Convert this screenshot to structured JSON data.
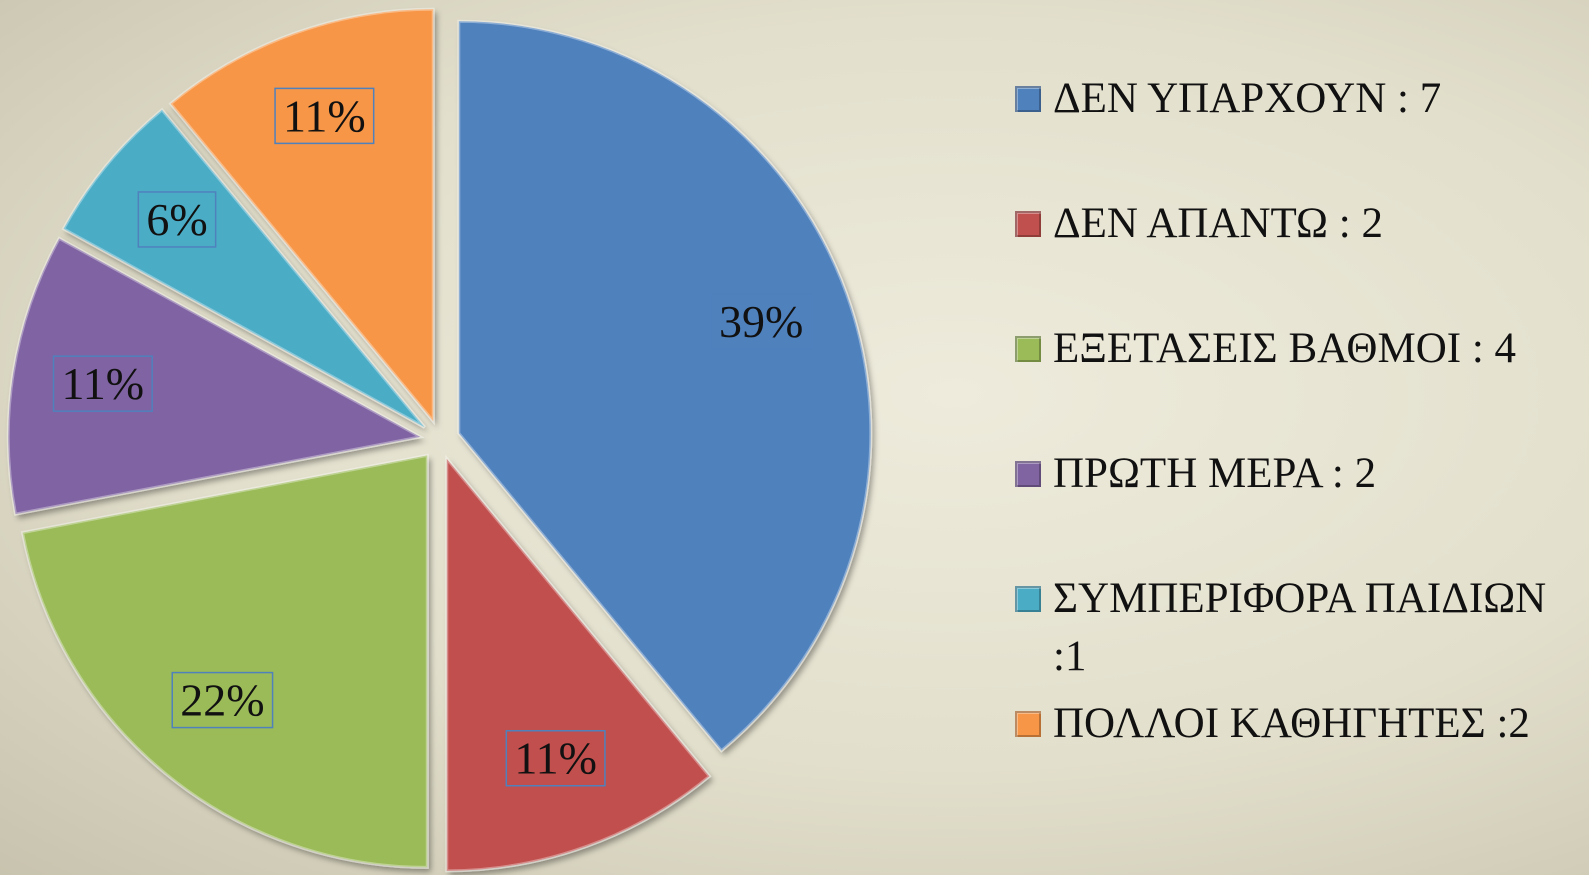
{
  "chart_data": {
    "type": "pie",
    "categories": [
      "ΔΕΝ ΥΠΑΡΧΟΥΝ : 7",
      "ΔΕΝ ΑΠΑΝΤΩ : 2",
      "ΕΞΕΤΑΣΕΙΣ ΒΑΘΜΟΙ : 4",
      "ΠΡΩΤΗ ΜΕΡΑ : 2",
      "ΣΥΜΠΕΡΙΦΟΡΑ ΠΑΙΔΙΩΝ :1",
      "ΠΟΛΛΟΙ ΚΑΘΗΓΗΤΕΣ :2"
    ],
    "values": [
      39,
      11,
      22,
      11,
      6,
      11
    ],
    "value_labels": [
      "39%",
      "11%",
      "22%",
      "11%",
      "6%",
      "11%"
    ],
    "colors": [
      "#4f81bd",
      "#c0504d",
      "#9bbb59",
      "#8064a2",
      "#4bacc6",
      "#f79646"
    ],
    "legend": "right"
  }
}
